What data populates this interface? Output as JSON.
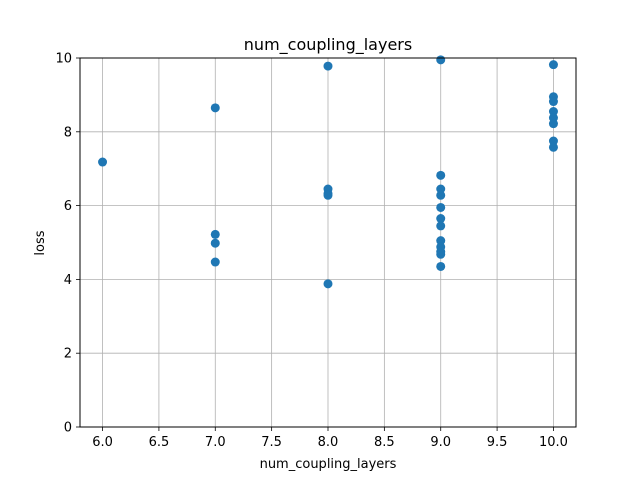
{
  "chart_data": {
    "type": "scatter",
    "title": "num_coupling_layers",
    "xlabel": "num_coupling_layers",
    "ylabel": "loss",
    "xlim": [
      5.8,
      10.2
    ],
    "ylim": [
      0,
      10
    ],
    "x_ticks": [
      "6.0",
      "6.5",
      "7.0",
      "7.5",
      "8.0",
      "8.5",
      "9.0",
      "9.5",
      "10.0"
    ],
    "y_ticks": [
      "0",
      "2",
      "4",
      "6",
      "8",
      "10"
    ],
    "grid": true,
    "marker_color": "#1f77b4",
    "points": [
      {
        "x": 6.0,
        "y": 7.18
      },
      {
        "x": 7.0,
        "y": 8.65
      },
      {
        "x": 7.0,
        "y": 5.22
      },
      {
        "x": 7.0,
        "y": 4.98
      },
      {
        "x": 7.0,
        "y": 4.47
      },
      {
        "x": 8.0,
        "y": 9.78
      },
      {
        "x": 8.0,
        "y": 6.45
      },
      {
        "x": 8.0,
        "y": 6.33
      },
      {
        "x": 8.0,
        "y": 6.28
      },
      {
        "x": 8.0,
        "y": 3.88
      },
      {
        "x": 9.0,
        "y": 9.95
      },
      {
        "x": 9.0,
        "y": 6.82
      },
      {
        "x": 9.0,
        "y": 6.45
      },
      {
        "x": 9.0,
        "y": 6.28
      },
      {
        "x": 9.0,
        "y": 5.95
      },
      {
        "x": 9.0,
        "y": 5.65
      },
      {
        "x": 9.0,
        "y": 5.45
      },
      {
        "x": 9.0,
        "y": 5.05
      },
      {
        "x": 9.0,
        "y": 4.88
      },
      {
        "x": 9.0,
        "y": 4.75
      },
      {
        "x": 9.0,
        "y": 4.68
      },
      {
        "x": 9.0,
        "y": 4.35
      },
      {
        "x": 10.0,
        "y": 9.82
      },
      {
        "x": 10.0,
        "y": 8.95
      },
      {
        "x": 10.0,
        "y": 8.82
      },
      {
        "x": 10.0,
        "y": 8.55
      },
      {
        "x": 10.0,
        "y": 8.38
      },
      {
        "x": 10.0,
        "y": 8.22
      },
      {
        "x": 10.0,
        "y": 7.75
      },
      {
        "x": 10.0,
        "y": 7.58
      }
    ]
  }
}
